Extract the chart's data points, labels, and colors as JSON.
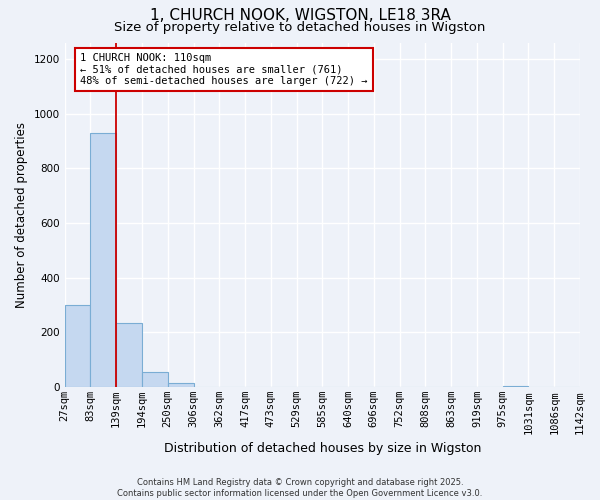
{
  "title": "1, CHURCH NOOK, WIGSTON, LE18 3RA",
  "subtitle": "Size of property relative to detached houses in Wigston",
  "xlabel": "Distribution of detached houses by size in Wigston",
  "ylabel": "Number of detached properties",
  "bar_color": "#c5d8f0",
  "bar_edge_color": "#7aadd4",
  "bins": [
    "27sqm",
    "83sqm",
    "139sqm",
    "194sqm",
    "250sqm",
    "306sqm",
    "362sqm",
    "417sqm",
    "473sqm",
    "529sqm",
    "585sqm",
    "640sqm",
    "696sqm",
    "752sqm",
    "808sqm",
    "863sqm",
    "919sqm",
    "975sqm",
    "1031sqm",
    "1086sqm",
    "1142sqm"
  ],
  "bar_heights": [
    300,
    930,
    235,
    55,
    15,
    0,
    0,
    0,
    0,
    0,
    0,
    0,
    0,
    0,
    0,
    0,
    0,
    5,
    0,
    0
  ],
  "ylim": [
    0,
    1260
  ],
  "yticks": [
    0,
    200,
    400,
    600,
    800,
    1000,
    1200
  ],
  "vline_x": 2,
  "vline_color": "#cc0000",
  "annotation_text": "1 CHURCH NOOK: 110sqm\n← 51% of detached houses are smaller (761)\n48% of semi-detached houses are larger (722) →",
  "annotation_box_color": "#cc0000",
  "background_color": "#eef2f9",
  "grid_color": "#ffffff",
  "footer_text": "Contains HM Land Registry data © Crown copyright and database right 2025.\nContains public sector information licensed under the Open Government Licence v3.0.",
  "title_fontsize": 11,
  "subtitle_fontsize": 9.5,
  "xlabel_fontsize": 9,
  "ylabel_fontsize": 8.5,
  "tick_fontsize": 7.5
}
